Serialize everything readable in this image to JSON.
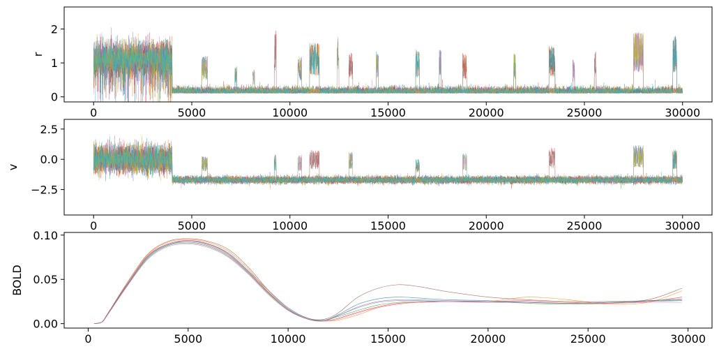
{
  "chart_data": [
    {
      "type": "line",
      "ylabel": "r",
      "xlabel": "",
      "xlim": [
        -1500,
        31500
      ],
      "ylim": [
        -0.15,
        2.65
      ],
      "xticks": [
        0,
        5000,
        10000,
        15000,
        20000,
        25000,
        30000
      ],
      "xtick_labels": [
        "0",
        "5000",
        "10000",
        "15000",
        "20000",
        "25000",
        "30000"
      ],
      "yticks": [
        0,
        1,
        2
      ],
      "ytick_labels": [
        "0",
        "1",
        "2"
      ],
      "series_count": 10,
      "series_note": "dense noisy traces, alpha-transparent, no legend",
      "high_state": {
        "x": [
          0,
          4000
        ],
        "level": 1.1,
        "spread": 0.55
      },
      "baseline": {
        "x": [
          3800,
          30000
        ],
        "level": 0.1,
        "spread": 0.12
      },
      "bursts": [
        {
          "x": [
            5500,
            5800
          ],
          "peak": 1.2
        },
        {
          "x": [
            7200,
            7300
          ],
          "peak": 0.9
        },
        {
          "x": [
            8100,
            8200
          ],
          "peak": 0.8
        },
        {
          "x": [
            9200,
            9300
          ],
          "peak": 2.0
        },
        {
          "x": [
            10400,
            10600
          ],
          "peak": 1.2
        },
        {
          "x": [
            11000,
            11500
          ],
          "peak": 1.6
        },
        {
          "x": [
            12400,
            12500
          ],
          "peak": 1.8
        },
        {
          "x": [
            13000,
            13200
          ],
          "peak": 1.3
        },
        {
          "x": [
            14400,
            14500
          ],
          "peak": 1.4
        },
        {
          "x": [
            16400,
            16600
          ],
          "peak": 1.4
        },
        {
          "x": [
            17600,
            17700
          ],
          "peak": 1.4
        },
        {
          "x": [
            18800,
            19000
          ],
          "peak": 1.3
        },
        {
          "x": [
            21400,
            21500
          ],
          "peak": 1.3
        },
        {
          "x": [
            23200,
            23500
          ],
          "peak": 1.5
        },
        {
          "x": [
            24400,
            24500
          ],
          "peak": 1.1
        },
        {
          "x": [
            25500,
            25600
          ],
          "peak": 1.4
        },
        {
          "x": [
            27500,
            28000
          ],
          "peak": 1.9
        },
        {
          "x": [
            29500,
            29700
          ],
          "peak": 1.8
        }
      ]
    },
    {
      "type": "line",
      "ylabel": "v",
      "xlabel": "",
      "xlim": [
        -1500,
        31500
      ],
      "ylim": [
        -4.6,
        3.3
      ],
      "xticks": [
        0,
        5000,
        10000,
        15000,
        20000,
        25000,
        30000
      ],
      "xtick_labels": [
        "0",
        "5000",
        "10000",
        "15000",
        "20000",
        "25000",
        "30000"
      ],
      "yticks": [
        2.5,
        0.0,
        -2.5
      ],
      "ytick_labels": [
        "2.5",
        "0.0",
        "−2.5"
      ],
      "series_count": 10,
      "series_note": "dense noisy traces, alpha-transparent, no legend",
      "high_state": {
        "x": [
          0,
          4000
        ],
        "level": 0.0,
        "spread": 1.3
      },
      "baseline": {
        "x": [
          3800,
          30000
        ],
        "level": -1.7,
        "spread": 0.3
      },
      "bursts": [
        {
          "x": [
            5500,
            5800
          ],
          "peak": 0.3
        },
        {
          "x": [
            9200,
            9300
          ],
          "peak": 0.4
        },
        {
          "x": [
            10400,
            10600
          ],
          "peak": 0.4
        },
        {
          "x": [
            11000,
            11500
          ],
          "peak": 0.8
        },
        {
          "x": [
            13000,
            13200
          ],
          "peak": 0.6
        },
        {
          "x": [
            16400,
            16600
          ],
          "peak": 0.0
        },
        {
          "x": [
            18800,
            19000
          ],
          "peak": 0.5
        },
        {
          "x": [
            23200,
            23500
          ],
          "peak": 1.0
        },
        {
          "x": [
            27500,
            28000
          ],
          "peak": 1.2
        },
        {
          "x": [
            29500,
            29700
          ],
          "peak": 0.8
        }
      ]
    },
    {
      "type": "line",
      "ylabel": "BOLD",
      "xlabel": "",
      "xlim": [
        -1200,
        31200
      ],
      "ylim": [
        -0.005,
        0.103
      ],
      "xticks": [
        0,
        5000,
        10000,
        15000,
        20000,
        25000,
        30000
      ],
      "xtick_labels": [
        "0",
        "5000",
        "10000",
        "15000",
        "20000",
        "25000",
        "30000"
      ],
      "yticks": [
        0.0,
        0.05,
        0.1
      ],
      "ytick_labels": [
        "0.00",
        "0.05",
        "0.10"
      ],
      "x": [
        300,
        700,
        1000,
        2000,
        3000,
        4000,
        5000,
        6000,
        7000,
        8000,
        9000,
        10000,
        11000,
        11800,
        12500,
        13500,
        14500,
        15500,
        16500,
        18000,
        20000,
        22000,
        24000,
        26000,
        28000,
        29700
      ],
      "series": [
        {
          "color": "#1f77b4",
          "values": [
            0.0,
            0.002,
            0.012,
            0.045,
            0.075,
            0.089,
            0.093,
            0.09,
            0.08,
            0.06,
            0.038,
            0.018,
            0.006,
            0.004,
            0.01,
            0.022,
            0.028,
            0.03,
            0.029,
            0.027,
            0.026,
            0.024,
            0.023,
            0.024,
            0.025,
            0.026
          ]
        },
        {
          "color": "#ff7f0e",
          "values": [
            0.0,
            0.002,
            0.012,
            0.047,
            0.078,
            0.092,
            0.095,
            0.092,
            0.082,
            0.062,
            0.036,
            0.016,
            0.005,
            0.003,
            0.004,
            0.01,
            0.018,
            0.022,
            0.024,
            0.025,
            0.025,
            0.03,
            0.027,
            0.022,
            0.024,
            0.037
          ]
        },
        {
          "color": "#2ca02c",
          "values": [
            0.0,
            0.002,
            0.011,
            0.044,
            0.074,
            0.088,
            0.091,
            0.087,
            0.076,
            0.057,
            0.034,
            0.015,
            0.005,
            0.004,
            0.008,
            0.015,
            0.021,
            0.024,
            0.025,
            0.025,
            0.025,
            0.023,
            0.022,
            0.023,
            0.026,
            0.026
          ]
        },
        {
          "color": "#d62728",
          "values": [
            0.0,
            0.002,
            0.012,
            0.046,
            0.077,
            0.09,
            0.094,
            0.09,
            0.079,
            0.059,
            0.036,
            0.016,
            0.005,
            0.003,
            0.006,
            0.013,
            0.019,
            0.023,
            0.024,
            0.025,
            0.025,
            0.026,
            0.024,
            0.023,
            0.025,
            0.03
          ]
        },
        {
          "color": "#9467bd",
          "values": [
            0.0,
            0.002,
            0.011,
            0.045,
            0.076,
            0.09,
            0.093,
            0.089,
            0.078,
            0.058,
            0.035,
            0.016,
            0.005,
            0.003,
            0.009,
            0.018,
            0.024,
            0.026,
            0.026,
            0.025,
            0.024,
            0.024,
            0.023,
            0.024,
            0.026,
            0.028
          ]
        },
        {
          "color": "#8c564b",
          "values": [
            0.0,
            0.002,
            0.012,
            0.048,
            0.079,
            0.093,
            0.096,
            0.093,
            0.084,
            0.064,
            0.038,
            0.017,
            0.006,
            0.005,
            0.012,
            0.03,
            0.04,
            0.044,
            0.042,
            0.036,
            0.03,
            0.027,
            0.025,
            0.025,
            0.027,
            0.04
          ]
        },
        {
          "color": "#e377c2",
          "values": [
            0.0,
            0.002,
            0.011,
            0.044,
            0.073,
            0.087,
            0.09,
            0.086,
            0.075,
            0.056,
            0.033,
            0.015,
            0.005,
            0.003,
            0.005,
            0.012,
            0.018,
            0.022,
            0.024,
            0.025,
            0.025,
            0.025,
            0.023,
            0.023,
            0.024,
            0.024
          ]
        },
        {
          "color": "#7f7f7f",
          "values": [
            0.0,
            0.002,
            0.012,
            0.046,
            0.076,
            0.089,
            0.092,
            0.088,
            0.077,
            0.058,
            0.035,
            0.016,
            0.005,
            0.004,
            0.009,
            0.019,
            0.025,
            0.027,
            0.027,
            0.026,
            0.025,
            0.024,
            0.023,
            0.024,
            0.026,
            0.027
          ]
        }
      ]
    }
  ],
  "colors": [
    "#1f77b4",
    "#ff7f0e",
    "#2ca02c",
    "#d62728",
    "#9467bd",
    "#8c564b",
    "#e377c2",
    "#7f7f7f",
    "#bcbd22",
    "#17becf"
  ]
}
